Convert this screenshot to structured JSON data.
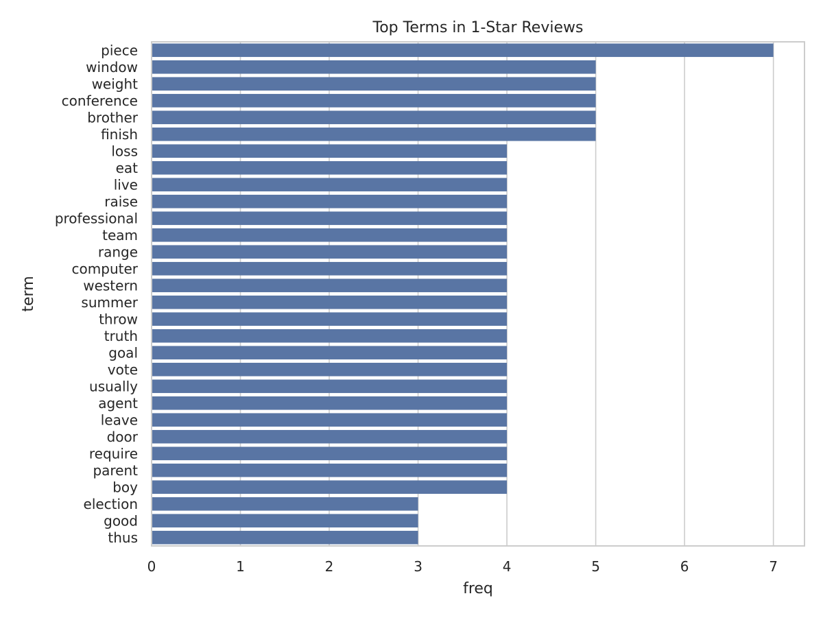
{
  "chart_data": {
    "type": "bar",
    "orientation": "horizontal",
    "title": "Top Terms in 1-Star Reviews",
    "xlabel": "freq",
    "ylabel": "term",
    "categories": [
      "piece",
      "window",
      "weight",
      "conference",
      "brother",
      "finish",
      "loss",
      "eat",
      "live",
      "raise",
      "professional",
      "team",
      "range",
      "computer",
      "western",
      "summer",
      "throw",
      "truth",
      "goal",
      "vote",
      "usually",
      "agent",
      "leave",
      "door",
      "require",
      "parent",
      "boy",
      "election",
      "good",
      "thus"
    ],
    "values": [
      7,
      5,
      5,
      5,
      5,
      5,
      4,
      4,
      4,
      4,
      4,
      4,
      4,
      4,
      4,
      4,
      4,
      4,
      4,
      4,
      4,
      4,
      4,
      4,
      4,
      4,
      4,
      3,
      3,
      3
    ],
    "xlim": [
      0,
      7.35
    ],
    "xticks": [
      "0",
      "1",
      "2",
      "3",
      "4",
      "5",
      "6",
      "7"
    ],
    "grid": true,
    "bar_color": "#5975a4",
    "grid_color": "#cccccc",
    "frame_color": "#cccccc"
  }
}
